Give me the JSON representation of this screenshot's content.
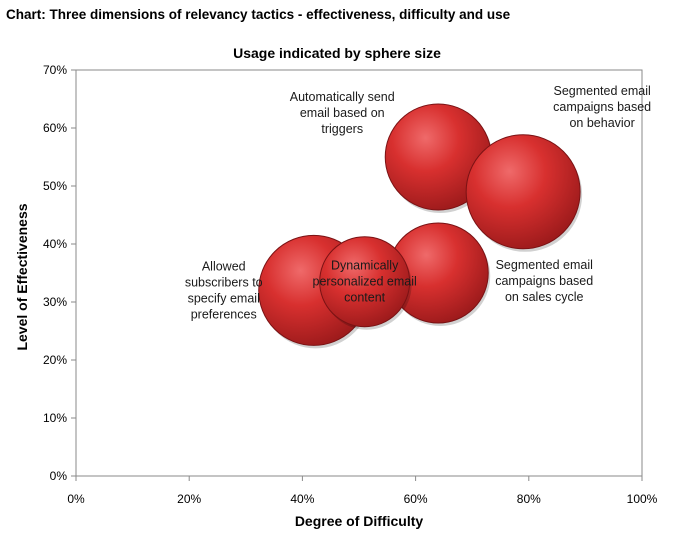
{
  "header": {
    "title": "Chart: Three dimensions of relevancy tactics - effectiveness, difficulty and use"
  },
  "chart_data": {
    "type": "bubble",
    "title": "Usage indicated by sphere size",
    "xlabel": "Degree of Difficulty",
    "ylabel": "Level of Effectiveness",
    "xlim": [
      0,
      1
    ],
    "ylim": [
      0,
      0.7
    ],
    "xticks": [
      "0%",
      "20%",
      "40%",
      "60%",
      "80%",
      "100%"
    ],
    "yticks": [
      "0%",
      "10%",
      "20%",
      "30%",
      "40%",
      "50%",
      "60%",
      "70%"
    ],
    "grid": false,
    "bubble_color": "#c8262a",
    "points": [
      {
        "label": [
          "Allowed",
          "subscribers to",
          "specify email",
          "preferences"
        ],
        "x": 0.42,
        "y": 0.32,
        "size": 55,
        "label_pos": "left"
      },
      {
        "label": [
          "Segmented email",
          "campaigns based",
          "on sales cycle"
        ],
        "x": 0.64,
        "y": 0.35,
        "size": 50,
        "label_pos": "right"
      },
      {
        "label": [
          "Dynamically",
          "personalized email",
          "content"
        ],
        "x": 0.51,
        "y": 0.335,
        "size": 45,
        "label_pos": "center"
      },
      {
        "label": [
          "Automatically send",
          "email based on",
          "triggers"
        ],
        "x": 0.64,
        "y": 0.55,
        "size": 53,
        "label_pos": "upper-left"
      },
      {
        "label": [
          "Segmented email",
          "campaigns based",
          "on behavior"
        ],
        "x": 0.79,
        "y": 0.49,
        "size": 57,
        "label_pos": "upper-right"
      }
    ]
  }
}
